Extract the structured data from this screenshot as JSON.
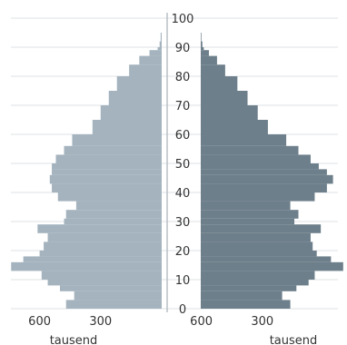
{
  "chart_data": {
    "type": "bar",
    "subtype": "population-pyramid",
    "orientation": "horizontal",
    "age_axis": {
      "min": 0,
      "max": 100,
      "ticks": [
        "0",
        "10",
        "20",
        "30",
        "40",
        "50",
        "60",
        "70",
        "80",
        "90",
        "100"
      ]
    },
    "value_axis": {
      "max": 700,
      "ticks_left": [
        "600",
        "300"
      ],
      "ticks_right": [
        "600",
        "300"
      ],
      "unit_left": "tausend",
      "unit_right": "tausend"
    },
    "grid": true,
    "series": [
      {
        "side": "left",
        "color": "#a4b3be",
        "ages": [
          0,
          3,
          6,
          8,
          10,
          13,
          16,
          18,
          20,
          23,
          26,
          29,
          31,
          34,
          37,
          40,
          43,
          46,
          48,
          50,
          53,
          56,
          60,
          65,
          70,
          75,
          80,
          84,
          87,
          89,
          90,
          92,
          95
        ],
        "values": [
          470,
          430,
          500,
          560,
          590,
          740,
          680,
          600,
          580,
          560,
          610,
          480,
          470,
          420,
          510,
          540,
          550,
          540,
          540,
          520,
          480,
          440,
          340,
          300,
          260,
          220,
          160,
          110,
          60,
          20,
          10,
          5,
          0
        ]
      },
      {
        "side": "right",
        "color": "#6d7f8b",
        "ages": [
          0,
          3,
          6,
          8,
          10,
          13,
          16,
          18,
          20,
          23,
          26,
          29,
          31,
          34,
          37,
          40,
          43,
          46,
          48,
          50,
          53,
          56,
          60,
          65,
          70,
          75,
          80,
          84,
          87,
          89,
          90,
          92,
          95
        ],
        "values": [
          440,
          400,
          470,
          530,
          560,
          700,
          640,
          570,
          550,
          540,
          590,
          460,
          480,
          440,
          560,
          620,
          650,
          620,
          580,
          540,
          480,
          420,
          330,
          280,
          230,
          180,
          120,
          80,
          40,
          15,
          8,
          3,
          0
        ]
      }
    ]
  }
}
